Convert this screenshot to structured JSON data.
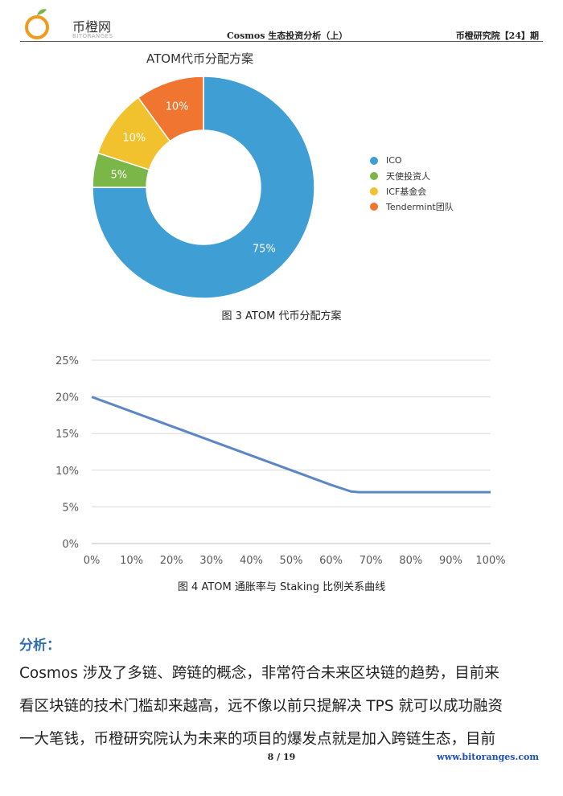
{
  "header": {
    "logo_text": "币橙网",
    "logo_sub": "BITORANGES",
    "title": "Cosmos 生态投资分析（上）",
    "right": "币橙研究院【24】期"
  },
  "pie_title": "ATOM代币分配方案",
  "caption3": "图 3 ATOM 代币分配方案",
  "caption4": "图 4 ATOM 通胀率与 Staking 比例关系曲线",
  "chart_data": [
    {
      "type": "pie",
      "title": "ATOM代币分配方案",
      "labels": [
        "ICO",
        "天使投资人",
        "ICF基金会",
        "Tendermint团队"
      ],
      "values": [
        75,
        5,
        10,
        10
      ],
      "value_labels": [
        "75%",
        "5%",
        "10%",
        "10%"
      ],
      "colors": [
        "#3f9fd5",
        "#7ab648",
        "#f2c12e",
        "#ef7530"
      ],
      "legend_position": "right"
    },
    {
      "type": "line",
      "x": [
        0,
        5,
        10,
        15,
        20,
        25,
        30,
        35,
        40,
        45,
        50,
        55,
        60,
        65,
        67,
        70,
        75,
        80,
        85,
        90,
        95,
        100
      ],
      "series": [
        {
          "values": [
            20.0,
            19.0,
            18.0,
            17.0,
            16.0,
            15.0,
            14.0,
            13.0,
            12.0,
            11.0,
            10.0,
            9.0,
            8.0,
            7.1,
            7.0,
            7.0,
            7.0,
            7.0,
            7.0,
            7.0,
            7.0,
            7.0
          ],
          "color": "#5b87c4"
        }
      ],
      "xlim": [
        0,
        100
      ],
      "ylim": [
        0,
        25
      ],
      "xticks": [
        "0%",
        "10%",
        "20%",
        "30%",
        "40%",
        "50%",
        "60%",
        "70%",
        "80%",
        "90%",
        "100%"
      ],
      "yticks": [
        "0%",
        "5%",
        "10%",
        "15%",
        "20%",
        "25%"
      ],
      "grid": true
    }
  ],
  "analysis": {
    "heading": "分析：",
    "lines": [
      "Cosmos 涉及了多链、跨链的概念，非常符合未来区块链的趋势，目前来",
      "看区块链的技术门槛却来越高，远不像以前只提解决 TPS 就可以成功融资",
      "一大笔钱，币橙研究院认为未来的项目的爆发点就是加入跨链生态，目前"
    ]
  },
  "footer": {
    "page": "8 / 19",
    "url": "www.bitoranges.com"
  }
}
